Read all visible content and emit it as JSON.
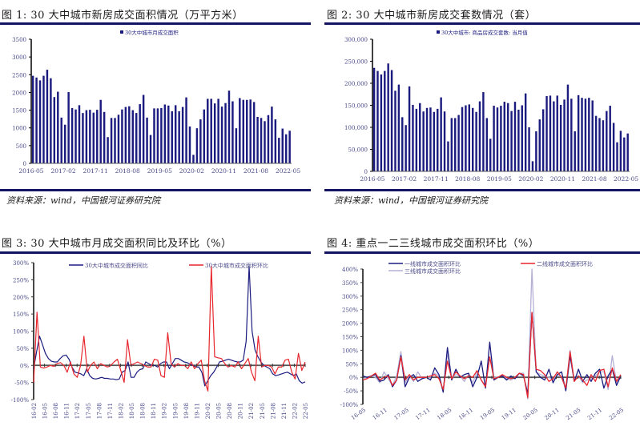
{
  "colors": {
    "navy": "#1c1c80",
    "red": "#e8262d",
    "lavender": "#b4b0d6",
    "rule": "#141464",
    "axis_text": "#4a4a8a"
  },
  "figures": [
    {
      "title": "图 1:  30 大中城市新房成交面积情况（万平方米）",
      "source": "资料来源：wind，中国银河证券研究院"
    },
    {
      "title": "图 2:  30 大中城市新房成交套数情况（套）",
      "source": "资料来源：wind，中国银河证券研究院"
    },
    {
      "title": "图 3:  30 大中城市月成交面积同比及环比（%）"
    },
    {
      "title": "图 4:  重点一二三线城市成交面积环比（%）"
    }
  ],
  "chart_data": [
    {
      "type": "bar",
      "title": "30大中城市新房成交面积情况（万平方米）",
      "legend": [
        "30大中城市月成交面积"
      ],
      "legend_position": "top",
      "x_tick_labels": [
        "2016-05",
        "2017-02",
        "2017-11",
        "2018-08",
        "2019-05",
        "2020-02",
        "2020-11",
        "2021-08",
        "2022-05"
      ],
      "y_ticks": [
        0,
        500,
        1000,
        1500,
        2000,
        2500,
        3000,
        3500
      ],
      "ylim": [
        0,
        3500
      ],
      "grid": false,
      "start": "2016-05",
      "values": [
        2470,
        2420,
        2340,
        2470,
        2640,
        2400,
        1870,
        2020,
        1290,
        1090,
        2010,
        1560,
        1520,
        1640,
        1420,
        1500,
        1510,
        1430,
        1510,
        1790,
        1450,
        740,
        1280,
        1280,
        1370,
        1520,
        1590,
        1610,
        1500,
        1420,
        1670,
        1930,
        1290,
        800,
        1550,
        1550,
        1560,
        1660,
        1630,
        1470,
        1640,
        1470,
        1590,
        1860,
        1040,
        240,
        990,
        1240,
        1520,
        1820,
        1820,
        1690,
        1820,
        1600,
        1700,
        2050,
        1750,
        990,
        1840,
        1790,
        1790,
        1800,
        1730,
        1310,
        1280,
        1190,
        1360,
        1600,
        1240,
        720,
        980,
        820,
        920
      ]
    },
    {
      "type": "bar",
      "title": "30大中城市新房成交套数情况（套）",
      "legend": [
        "30大中城市: 商品房成交套数: 当月值"
      ],
      "legend_position": "top",
      "x_tick_labels": [
        "2016-05",
        "2017-02",
        "2017-11",
        "2018-08",
        "2019-05",
        "2020-02",
        "2020-11",
        "2021-08",
        "2022-05"
      ],
      "y_ticks": [
        0,
        50000,
        100000,
        150000,
        200000,
        250000,
        300000
      ],
      "y_tick_labels": [
        "0",
        "50,000",
        "100,000",
        "150,000",
        "200,000",
        "250,000",
        "300,000"
      ],
      "ylim": [
        0,
        300000
      ],
      "grid": false,
      "start": "2016-05",
      "values": [
        235000,
        228000,
        220000,
        228000,
        245000,
        230000,
        183000,
        197000,
        123000,
        105000,
        193000,
        151000,
        142000,
        155000,
        136000,
        144000,
        145000,
        135000,
        142000,
        168000,
        136000,
        68000,
        121000,
        121000,
        128000,
        146000,
        150000,
        152000,
        144000,
        135000,
        159000,
        180000,
        121000,
        74000,
        149000,
        145000,
        149000,
        158000,
        155000,
        137000,
        158000,
        140000,
        150000,
        177000,
        100000,
        23000,
        91000,
        118000,
        141000,
        171000,
        172000,
        159000,
        172000,
        151000,
        163000,
        197000,
        165000,
        91000,
        173000,
        167000,
        165000,
        167000,
        161000,
        126000,
        121000,
        116000,
        137000,
        149000,
        110000,
        66000,
        92000,
        77000,
        86000
      ]
    },
    {
      "type": "line",
      "title": "30大中城市月成交面积同比及环比（%）",
      "legend": [
        "30大中城市成交面积同比",
        "30大中城市成交面积环比"
      ],
      "legend_position": "top",
      "x_tick_labels": [
        "16-02",
        "16-05",
        "16-08",
        "16-11",
        "17-02",
        "17-05",
        "17-08",
        "17-11",
        "18-02",
        "18-05",
        "18-08",
        "18-11",
        "19-02",
        "19-05",
        "19-08",
        "19-11",
        "20-02",
        "20-05",
        "20-08",
        "20-11",
        "21-02",
        "21-05",
        "21-08",
        "21-11",
        "22-02",
        "22-05"
      ],
      "y_ticks": [
        -100,
        -50,
        0,
        50,
        100,
        150,
        200,
        250,
        300
      ],
      "y_tick_labels": [
        "-100%",
        "-50%",
        "0%",
        "50%",
        "100%",
        "150%",
        "200%",
        "250%",
        "300%"
      ],
      "ylim": [
        -100,
        300
      ],
      "grid": false,
      "start": "16-02",
      "series": [
        {
          "name": "30大中城市成交面积同比",
          "color": "#1c1c80",
          "values": [
            -10,
            40,
            85,
            60,
            35,
            20,
            12,
            10,
            10,
            20,
            28,
            30,
            18,
            -5,
            -20,
            -22,
            -25,
            -30,
            -10,
            -30,
            -38,
            -40,
            -38,
            -35,
            -38,
            -38,
            -40,
            -40,
            -42,
            -40,
            -20,
            -15,
            10,
            -35,
            -35,
            -20,
            -12,
            -10,
            10,
            5,
            0,
            0,
            -5,
            5,
            10,
            10,
            -10,
            5,
            20,
            20,
            15,
            10,
            8,
            3,
            0,
            -5,
            -5,
            -20,
            -60,
            -45,
            -30,
            -20,
            -5,
            10,
            12,
            15,
            18,
            15,
            12,
            10,
            10,
            15,
            70,
            290,
            100,
            45,
            25,
            10,
            0,
            -5,
            -10,
            -25,
            -30,
            -28,
            -25,
            -22,
            -20,
            -25,
            -30,
            -25,
            -45,
            -52,
            -48
          ]
        },
        {
          "name": "30大中城市成交面积环比",
          "color": "#e8262d",
          "values": [
            -50,
            155,
            -5,
            -8,
            -5,
            0,
            -3,
            5,
            8,
            0,
            -20,
            10,
            -25,
            -35,
            0,
            85,
            -20,
            0,
            10,
            -10,
            5,
            0,
            -5,
            0,
            10,
            18,
            -15,
            -50,
            75,
            0,
            5,
            10,
            5,
            0,
            -5,
            -5,
            18,
            15,
            -30,
            -35,
            95,
            5,
            -5,
            5,
            0,
            0,
            -10,
            10,
            -10,
            5,
            15,
            -45,
            -75,
            290,
            25,
            22,
            20,
            5,
            -5,
            0,
            -5,
            10,
            -10,
            5,
            20,
            -20,
            -45,
            85,
            -5,
            0,
            0,
            -5,
            -25,
            -5,
            -5,
            15,
            18,
            -20,
            -40,
            35,
            -15,
            10
          ]
        }
      ]
    },
    {
      "type": "line",
      "title": "重点一二三线城市成交面积环比（%）",
      "legend": [
        "一线城市成交面积环比",
        "二线城市成交面积环比",
        "三线城市成交面积环比"
      ],
      "legend_position": "top",
      "x_tick_labels": [
        "16-05",
        "16-11",
        "17-05",
        "17-11",
        "18-05",
        "18-11",
        "19-05",
        "19-11",
        "20-05",
        "20-11",
        "21-05",
        "21-11",
        "22-05"
      ],
      "y_ticks": [
        -100,
        -50,
        0,
        50,
        100,
        150,
        200,
        250,
        300,
        350,
        400
      ],
      "y_tick_labels": [
        "-100%",
        "-50%",
        "0%",
        "50%",
        "100%",
        "150%",
        "200%",
        "250%",
        "300%",
        "350%",
        "400%"
      ],
      "ylim": [
        -100,
        400
      ],
      "grid": false,
      "start": "16-05",
      "series": [
        {
          "name": "一线城市成交面积环比",
          "color": "#1c1c80",
          "values": [
            5,
            0,
            5,
            10,
            -15,
            -10,
            10,
            -35,
            -10,
            80,
            -35,
            0,
            10,
            -15,
            -5,
            0,
            -10,
            35,
            10,
            -55,
            110,
            -10,
            30,
            0,
            10,
            15,
            -35,
            0,
            60,
            -40,
            130,
            -10,
            0,
            5,
            -10,
            5,
            -5,
            15,
            5,
            -60,
            240,
            20,
            0,
            -10,
            30,
            -20,
            10,
            20,
            -50,
            80,
            -15,
            30,
            -15,
            10,
            -15,
            15,
            30,
            -40,
            5,
            30,
            -30,
            5
          ]
        },
        {
          "name": "二线城市成交面积环比",
          "color": "#e8262d",
          "values": [
            -10,
            -5,
            5,
            15,
            -10,
            0,
            5,
            -30,
            -10,
            75,
            -10,
            10,
            -10,
            0,
            0,
            0,
            5,
            10,
            -5,
            -45,
            60,
            -5,
            20,
            5,
            -5,
            5,
            0,
            25,
            -10,
            -35,
            75,
            -5,
            0,
            10,
            0,
            -5,
            0,
            15,
            10,
            -75,
            240,
            30,
            25,
            10,
            -15,
            -5,
            20,
            0,
            -40,
            95,
            -15,
            5,
            -10,
            -30,
            10,
            -15,
            25,
            30,
            -35,
            35,
            -15,
            10
          ]
        },
        {
          "name": "三线城市成交面积环比",
          "color": "#b4b0d6",
          "values": [
            -5,
            0,
            5,
            0,
            -20,
            20,
            -5,
            -30,
            5,
            95,
            -20,
            5,
            -15,
            20,
            -5,
            0,
            0,
            15,
            5,
            -50,
            90,
            -5,
            10,
            5,
            -15,
            10,
            -20,
            20,
            -10,
            -35,
            75,
            0,
            0,
            5,
            -5,
            -10,
            0,
            15,
            15,
            -80,
            400,
            20,
            10,
            5,
            0,
            -10,
            10,
            0,
            -45,
            100,
            -10,
            5,
            -20,
            -10,
            -5,
            5,
            20,
            20,
            -45,
            80,
            -20,
            5
          ]
        }
      ]
    }
  ]
}
